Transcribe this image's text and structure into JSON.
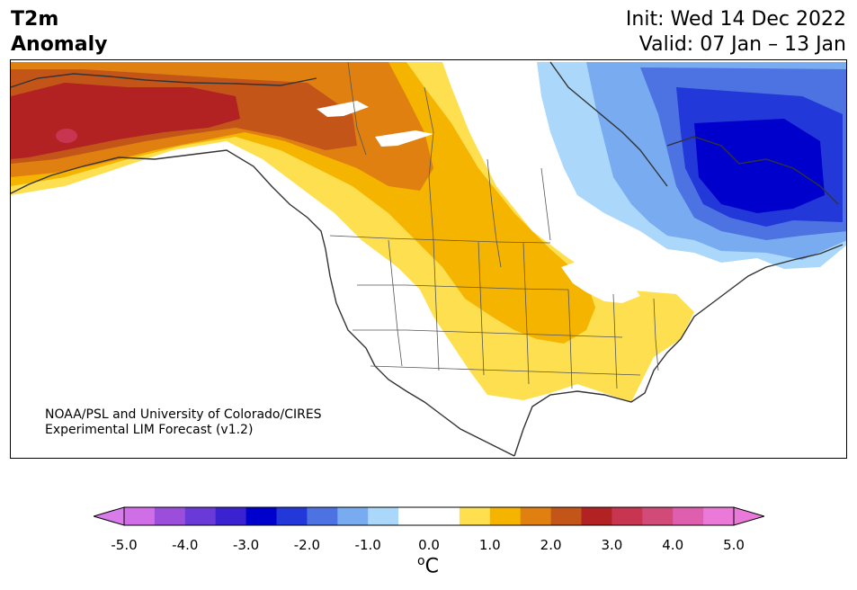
{
  "header": {
    "variable": "T2m",
    "field": "Anomaly",
    "init": "Init: Wed 14 Dec 2022",
    "valid": "Valid: 07 Jan – 13 Jan"
  },
  "credit": {
    "line1": "NOAA/PSL and University of Colorado/CIRES",
    "line2": "Experimental LIM Forecast (v1.2)"
  },
  "colorbar": {
    "unit_base": "o",
    "unit_symbol": "C",
    "ticks": [
      "-5.0",
      "-4.0",
      "-3.0",
      "-2.0",
      "-1.0",
      "0.0",
      "1.0",
      "2.0",
      "3.0",
      "4.0",
      "5.0"
    ],
    "colors": [
      "#d06ee8",
      "#9b4ed9",
      "#6a3ad8",
      "#3a22d0",
      "#0000cc",
      "#2238d8",
      "#4d72e2",
      "#78abf0",
      "#aad7fa",
      "#ffffff",
      "#ffffff",
      "#fddf4f",
      "#f4b400",
      "#df8010",
      "#c45518",
      "#b22222",
      "#c83550",
      "#d14a78",
      "#dd5fae",
      "#ea79d8"
    ],
    "extend_low_color": "#d77ce9",
    "extend_high_color": "#ea7ad9"
  },
  "map": {
    "anomaly_colors": {
      "strong_warm": "#b22222",
      "warm_3": "#c45518",
      "warm_2": "#df8010",
      "warm_1": "#f4b400",
      "warm_05": "#fddf4f",
      "cold_05": "#aad7fa",
      "cold_1": "#78abf0",
      "cold_2": "#4d72e2",
      "cold_25": "#2238d8",
      "cold_3": "#0000cc"
    }
  }
}
